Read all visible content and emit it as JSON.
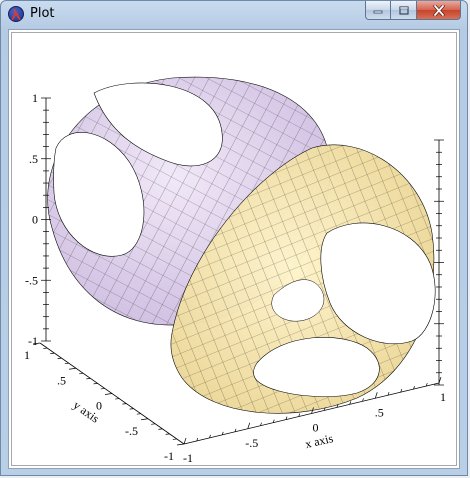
{
  "window": {
    "title": "Plot",
    "buttons": [
      "minimize",
      "maximize",
      "close"
    ]
  },
  "icons": {
    "app": "racket-lambda-icon",
    "minimize": "minimize-icon",
    "maximize": "maximize-icon",
    "close": "close-icon"
  },
  "chart_data": {
    "type": "surface-3d",
    "description_labels": {
      "xlabel": "x axis",
      "ylabel": "y axis"
    },
    "x_ticks": [
      "-1",
      "-.5",
      "0",
      ".5",
      "1"
    ],
    "y_ticks": [
      "-1",
      "-.5",
      "0",
      ".5",
      "1"
    ],
    "z_ticks": [
      "-1",
      "-.5",
      "0",
      ".5",
      "1"
    ],
    "xlim": [
      -1,
      1
    ],
    "ylim": [
      -1,
      1
    ],
    "zlim": [
      -1,
      1
    ],
    "series": [
      {
        "color": "#d8c8e8"
      },
      {
        "color": "#f6e3a6"
      }
    ]
  }
}
